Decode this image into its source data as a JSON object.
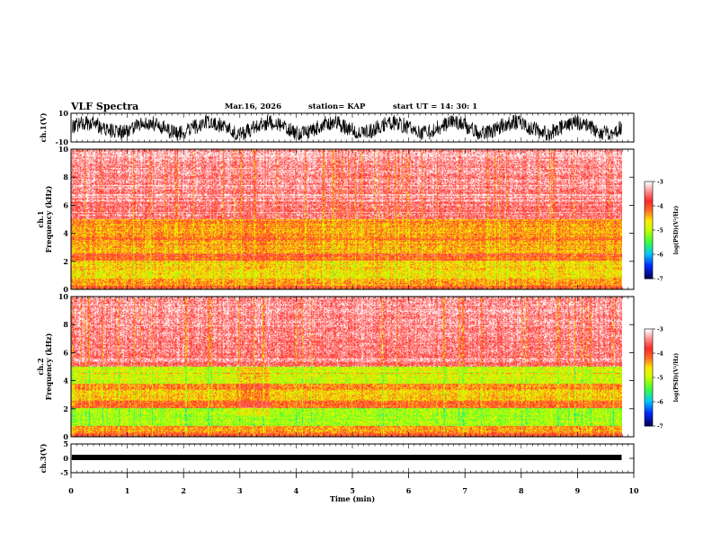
{
  "header": {
    "title": "VLF Spectra",
    "date": "Mar.16, 2026",
    "station": "station= KAP",
    "start": "start  UT  =   14: 30: 1"
  },
  "colors": {
    "axis": "#000000",
    "colormap": [
      "#ffffff",
      "#ff3333",
      "#ffff00",
      "#33ff33",
      "#00ccff",
      "#0033ff",
      "#000066"
    ]
  },
  "chart_data": [
    {
      "type": "line",
      "id": "ch1-waveform",
      "ylabel": "ch.1(V)",
      "ylim": [
        -10,
        10
      ],
      "y_ticks": [
        "10",
        "-10"
      ],
      "description_values": {
        "amplitude_approx": 8,
        "oscillation_cycles": 9
      }
    },
    {
      "type": "heatmap",
      "id": "ch1-spectrogram",
      "ylabel": "ch.1\nFrequency (kHz)",
      "ylim": [
        0,
        10
      ],
      "y_ticks": [
        "0",
        "2",
        "4",
        "6",
        "8",
        "10"
      ],
      "colorbar": {
        "label": "log(PSD)(V²/Hz)",
        "range": [
          -7,
          -3
        ],
        "ticks": [
          "-3",
          "-4",
          "-5",
          "-6",
          "-7"
        ]
      }
    },
    {
      "type": "heatmap",
      "id": "ch2-spectrogram",
      "ylabel": "ch.2\nFrequency (kHz)",
      "ylim": [
        0,
        10
      ],
      "y_ticks": [
        "0",
        "2",
        "4",
        "6",
        "8",
        "10"
      ],
      "colorbar": {
        "label": "log(PSD)(V²/Hz)",
        "range": [
          -7,
          -3
        ],
        "ticks": [
          "-3",
          "-4",
          "-5",
          "-6",
          "-7"
        ]
      }
    },
    {
      "type": "line",
      "id": "ch3-waveform",
      "ylabel": "ch.3(V)",
      "ylim": [
        -5,
        5
      ],
      "y_ticks": [
        "5",
        "0",
        "-5"
      ],
      "description_values": {
        "level_approx": 0
      }
    }
  ],
  "x_axis": {
    "label": "Time (min)",
    "ticks": [
      "0",
      "1",
      "2",
      "3",
      "4",
      "5",
      "6",
      "7",
      "8",
      "9",
      "10"
    ],
    "range": [
      0,
      10
    ],
    "data_end": 9.8,
    "disturbance_interval": [
      2.95,
      3.5
    ]
  }
}
